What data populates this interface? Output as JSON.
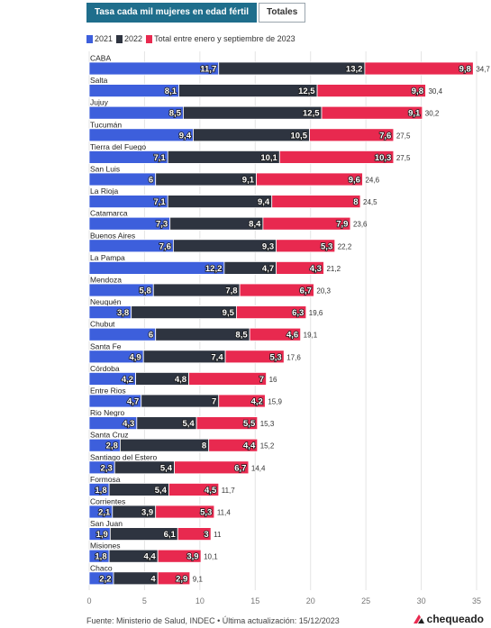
{
  "tabs": [
    {
      "label": "Tasa cada mil mujeres en edad fértil",
      "active": true
    },
    {
      "label": "Totales",
      "active": false
    }
  ],
  "source": "Fuente: Ministerio de Salud, INDEC • Última actualización: 15/12/2023",
  "brand": "chequeado",
  "colors": {
    "s2021": "#3d5fdc",
    "s2022": "#2e3440",
    "s2023": "#e8294f"
  },
  "chart_data": {
    "type": "bar",
    "orientation": "horizontal",
    "stacked": true,
    "categories": [
      "CABA",
      "Salta",
      "Jujuy",
      "Tucumán",
      "Tierra del Fuego",
      "San Luis",
      "La Rioja",
      "Catamarca",
      "Buenos Aires",
      "La Pampa",
      "Mendoza",
      "Neuquén",
      "Chubut",
      "Santa Fe",
      "Córdoba",
      "Entre Rios",
      "Rio Negro",
      "Santa Cruz",
      "Santiago del Estero",
      "Formosa",
      "Corrientes",
      "San Juan",
      "Misiones",
      "Chaco"
    ],
    "series": [
      {
        "name": "2021",
        "values": [
          "11,7",
          "8,1",
          "8,5",
          "9,4",
          "7,1",
          "6",
          "7,1",
          "7,3",
          "7,6",
          "12,2",
          "5,8",
          "3,8",
          "6",
          "4,9",
          "4,2",
          "4,7",
          "4,3",
          "2,8",
          "2,3",
          "1,8",
          "2,1",
          "1,9",
          "1,8",
          "2,2"
        ]
      },
      {
        "name": "2022",
        "values": [
          "13,2",
          "12,5",
          "12,5",
          "10,5",
          "10,1",
          "9,1",
          "9,4",
          "8,4",
          "9,3",
          "4,7",
          "7,8",
          "9,5",
          "8,5",
          "7,4",
          "4,8",
          "7",
          "5,4",
          "8",
          "5,4",
          "5,4",
          "3,9",
          "6,1",
          "4,4",
          "4"
        ]
      },
      {
        "name": "Total entre enero y septiembre de 2023",
        "values": [
          "9,8",
          "9,8",
          "9,1",
          "7,6",
          "10,3",
          "9,6",
          "8",
          "7,9",
          "5,3",
          "4,3",
          "6,7",
          "6,3",
          "4,6",
          "5,3",
          "7",
          "4,2",
          "5,5",
          "4,4",
          "6,7",
          "4,5",
          "5,3",
          "3",
          "3,9",
          "2,9"
        ]
      }
    ],
    "totals": [
      "34,7",
      "30,4",
      "30,2",
      "27,5",
      "27,5",
      "24,6",
      "24,5",
      "23,6",
      "22,2",
      "21,2",
      "20,3",
      "19,6",
      "19,1",
      "17,6",
      "16",
      "15,9",
      "15,3",
      "15,2",
      "14,4",
      "11,7",
      "11,4",
      "11",
      "10,1",
      "9,1"
    ],
    "xlim": [
      0,
      35
    ],
    "xticks": [
      "0",
      "5",
      "10",
      "15",
      "20",
      "25",
      "30",
      "35"
    ],
    "grid": true,
    "legend_position": "top-left"
  }
}
